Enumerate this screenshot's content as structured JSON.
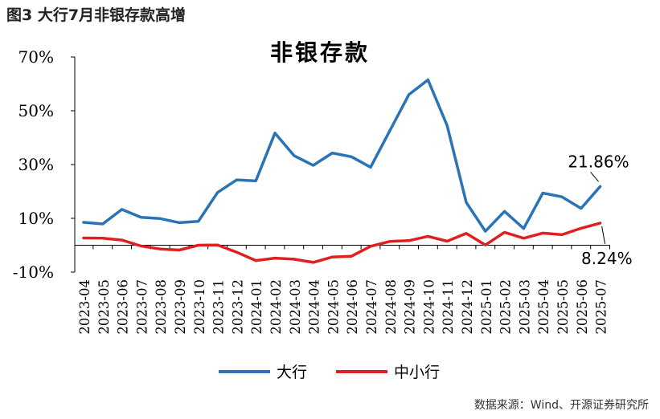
{
  "figure_title": "图3   大行7月非银存款高增",
  "source": "数据来源：Wind、开源证券研究所",
  "colors": {
    "large_banks": "#2a74b5",
    "small_mid_banks": "#e02020",
    "axis": "#000000"
  },
  "chart_data": {
    "type": "line",
    "title": "非银存款",
    "ylim": [
      -10,
      70
    ],
    "yticks": [
      "70%",
      "50%",
      "30%",
      "10%",
      "-10%"
    ],
    "ytick_values": [
      70,
      50,
      30,
      10,
      -10
    ],
    "grid": false,
    "legend_position": "bottom",
    "x": [
      "2023-04",
      "2023-05",
      "2023-06",
      "2023-07",
      "2023-08",
      "2023-09",
      "2023-10",
      "2023-11",
      "2023-12",
      "2024-01",
      "2024-02",
      "2024-03",
      "2024-04",
      "2024-05",
      "2024-06",
      "2024-07",
      "2024-08",
      "2024-09",
      "2024-10",
      "2024-11",
      "2024-12",
      "2025-01",
      "2025-02",
      "2025-03",
      "2025-04",
      "2025-05",
      "2025-06",
      "2025-07"
    ],
    "series": [
      {
        "name": "大行",
        "values": [
          8.5,
          7.9,
          13.3,
          10.4,
          9.9,
          8.4,
          8.9,
          19.6,
          24.3,
          23.9,
          41.7,
          33.3,
          29.7,
          34.3,
          32.9,
          29.0,
          42.5,
          56.0,
          61.5,
          44.5,
          15.9,
          5.2,
          12.6,
          6.2,
          19.4,
          18.0,
          13.7,
          21.86
        ]
      },
      {
        "name": "中小行",
        "values": [
          2.7,
          2.6,
          1.9,
          -0.3,
          -1.4,
          -1.8,
          0.0,
          0.1,
          -2.6,
          -5.7,
          -4.8,
          -5.2,
          -6.4,
          -4.4,
          -4.1,
          -0.4,
          1.4,
          1.7,
          3.3,
          1.5,
          4.4,
          0.1,
          4.8,
          2.6,
          4.5,
          3.9,
          6.3,
          8.24
        ]
      }
    ],
    "annotations": [
      {
        "text": "21.86%",
        "series": "大行",
        "x": "2025-07"
      },
      {
        "text": "8.24%",
        "series": "中小行",
        "x": "2025-07"
      }
    ]
  }
}
